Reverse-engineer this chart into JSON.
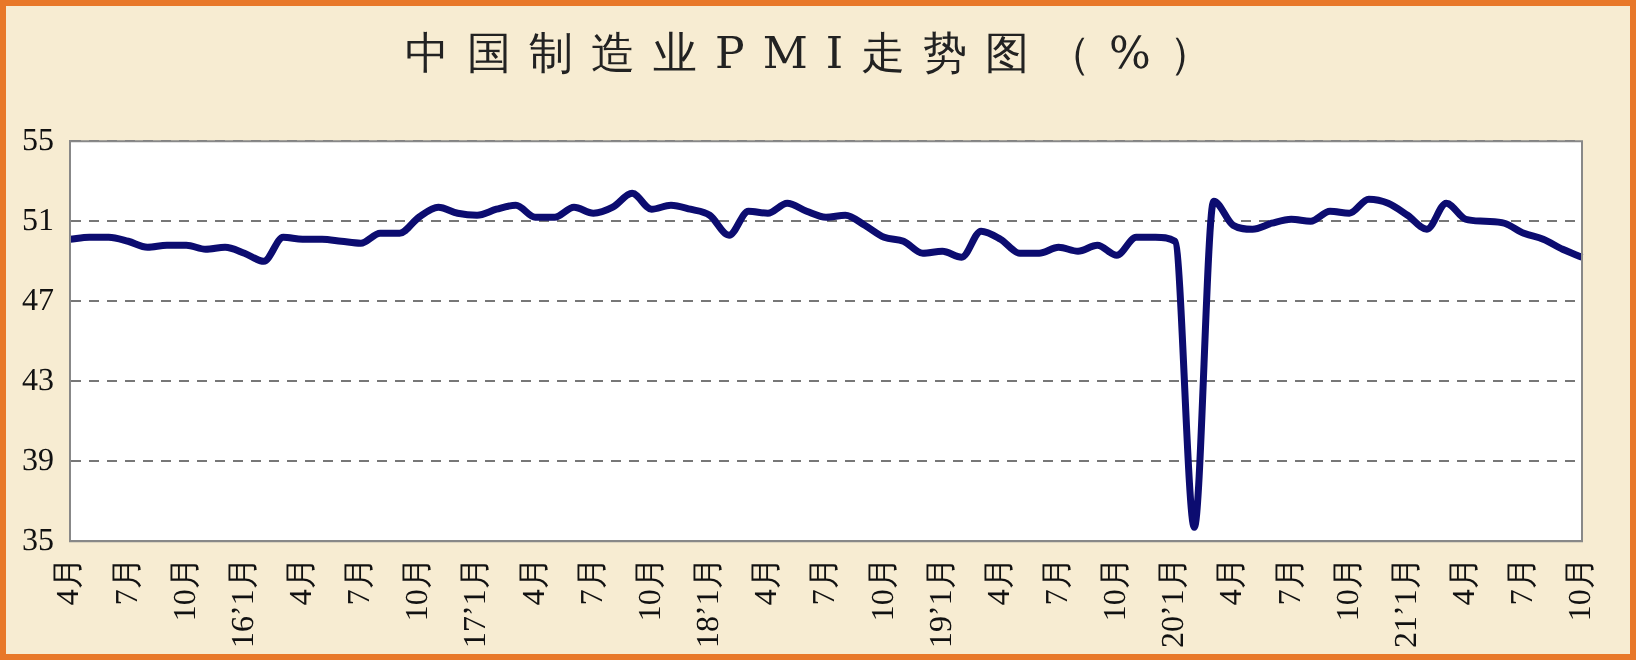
{
  "chart_data": {
    "type": "line",
    "title": "中国制造业PMI走势图（%）",
    "categories": [
      "4月",
      null,
      null,
      "7月",
      null,
      null,
      "10月",
      null,
      null,
      "16’1月",
      null,
      null,
      "4月",
      null,
      null,
      "7月",
      null,
      null,
      "10月",
      null,
      null,
      "17’1月",
      null,
      null,
      "4月",
      null,
      null,
      "7月",
      null,
      null,
      "10月",
      null,
      null,
      "18’1月",
      null,
      null,
      "4月",
      null,
      null,
      "7月",
      null,
      null,
      "10月",
      null,
      null,
      "19’1月",
      null,
      null,
      "4月",
      null,
      null,
      "7月",
      null,
      null,
      "10月",
      null,
      null,
      "20’1月",
      null,
      null,
      "4月",
      null,
      null,
      "7月",
      null,
      null,
      "10月",
      null,
      null,
      "21’1月",
      null,
      null,
      "4月",
      null,
      null,
      "7月",
      null,
      null,
      "10月"
    ],
    "series": [
      {
        "color": "#0c0c70",
        "values": [
          50.1,
          50.2,
          50.2,
          50.0,
          49.7,
          49.8,
          49.8,
          49.6,
          49.7,
          49.4,
          49.0,
          50.2,
          50.1,
          50.1,
          50.0,
          49.9,
          50.4,
          50.4,
          51.2,
          51.7,
          51.4,
          51.3,
          51.6,
          51.8,
          51.2,
          51.2,
          51.7,
          51.4,
          51.7,
          52.4,
          51.6,
          51.8,
          51.6,
          51.3,
          50.3,
          51.5,
          51.4,
          51.9,
          51.5,
          51.2,
          51.3,
          50.8,
          50.2,
          50.0,
          49.4,
          49.5,
          49.2,
          50.5,
          50.1,
          49.4,
          49.4,
          49.7,
          49.5,
          49.8,
          49.3,
          50.2,
          50.2,
          50.0,
          35.7,
          52.0,
          50.8,
          50.6,
          50.9,
          51.1,
          51.0,
          51.5,
          51.4,
          52.1,
          51.9,
          51.3,
          50.6,
          51.9,
          51.1,
          51.0,
          50.9,
          50.4,
          50.1,
          49.6,
          49.2
        ]
      }
    ],
    "ylim": [
      35,
      55
    ],
    "yticks": [
      35,
      39,
      43,
      47,
      51,
      55
    ],
    "grid": "y",
    "legend": false,
    "marker": "none",
    "line_style": "solid"
  }
}
